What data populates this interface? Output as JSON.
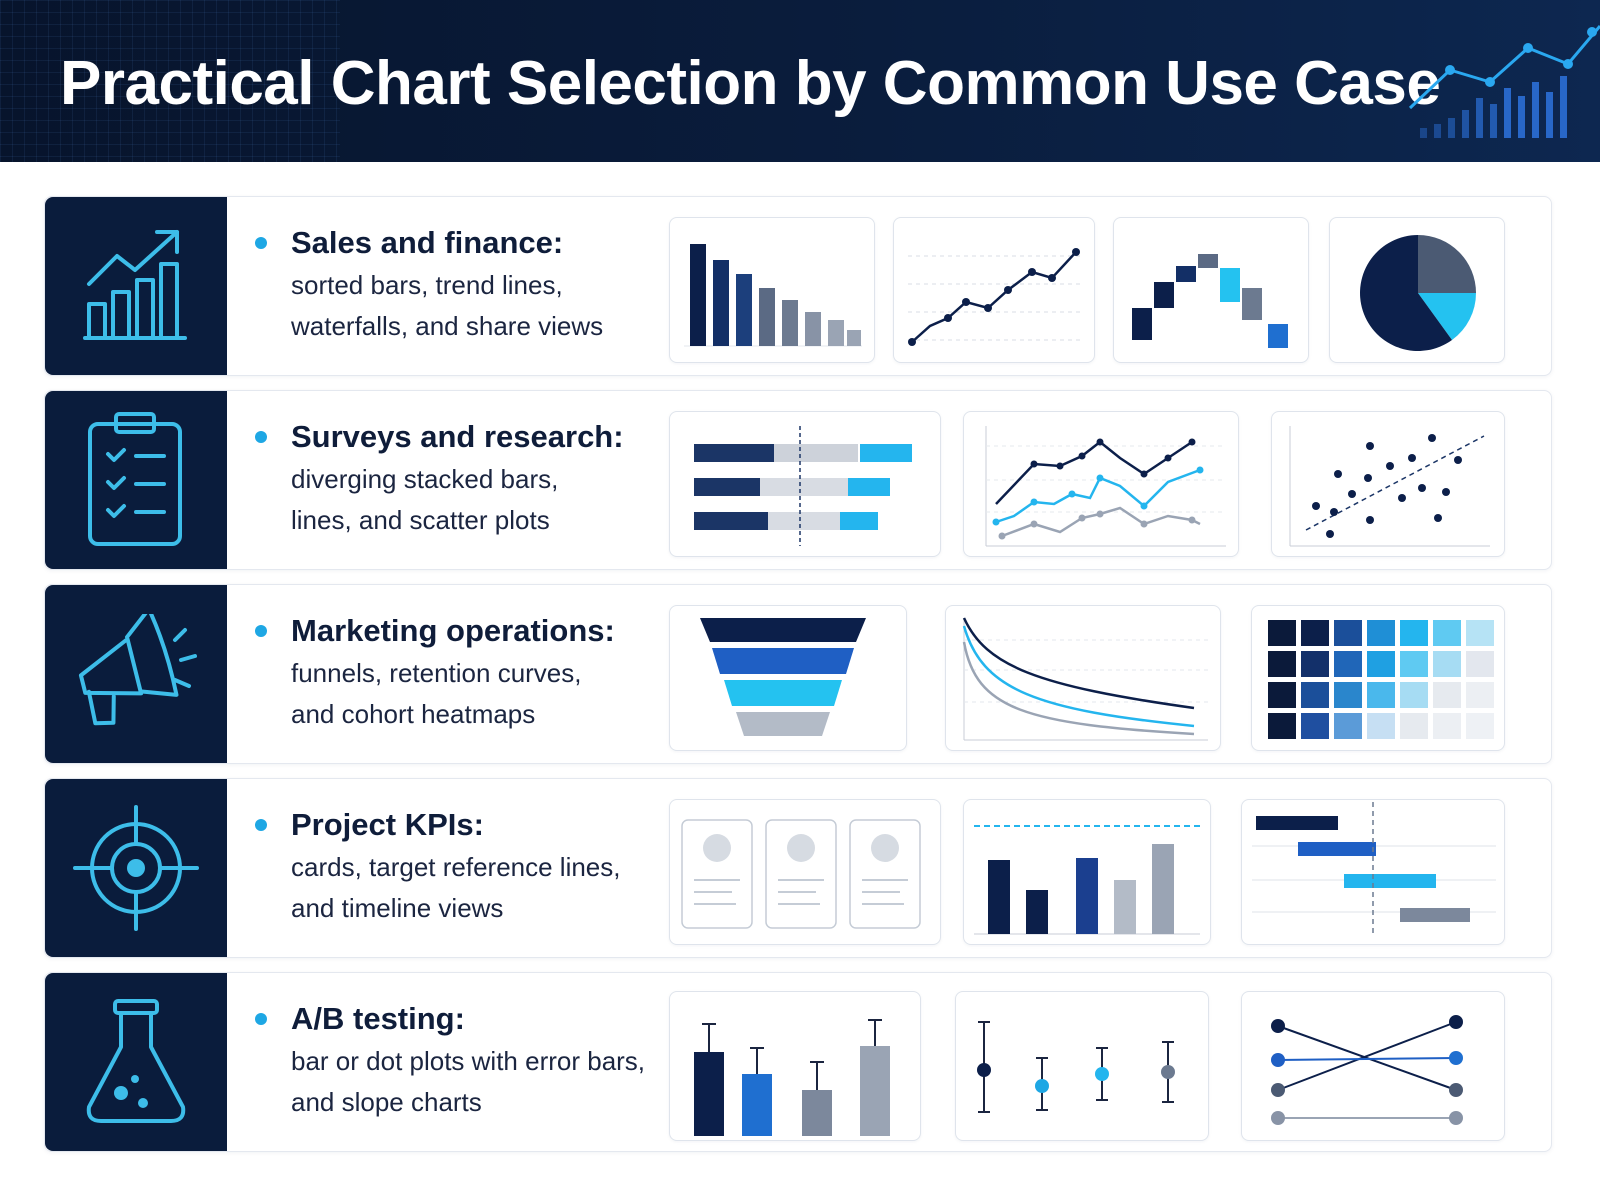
{
  "title": "Practical Chart Selection by Common Use Case",
  "colors": {
    "navy": "#0c1f4a",
    "blue": "#1f5fc4",
    "cyan": "#24c2f0",
    "slate": "#6c7a90",
    "gray": "#b3bbc7",
    "header_bg": "#0a1d3d",
    "icon_panel": "#0a1c3c",
    "icon_stroke": "#3dbde9",
    "bullet": "#1ea7e4"
  },
  "rows": [
    {
      "icon": "growth-chart-icon",
      "title": "Sales and finance:",
      "desc_lines": [
        "sorted bars, trend lines,",
        "waterfalls, and share views"
      ],
      "thumbnails": [
        "sorted-bar-chart",
        "trend-line-chart",
        "waterfall-chart",
        "pie-chart"
      ]
    },
    {
      "icon": "clipboard-checklist-icon",
      "title": "Surveys and research:",
      "desc_lines": [
        "diverging stacked bars,",
        "lines, and scatter plots"
      ],
      "thumbnails": [
        "diverging-stacked-bar-chart",
        "multi-line-chart",
        "scatter-plot"
      ]
    },
    {
      "icon": "megaphone-icon",
      "title": "Marketing operations:",
      "desc_lines": [
        "funnels, retention curves,",
        "and cohort heatmaps"
      ],
      "thumbnails": [
        "funnel-chart",
        "retention-curve-chart",
        "cohort-heatmap"
      ]
    },
    {
      "icon": "target-icon",
      "title": "Project KPIs:",
      "desc_lines": [
        "cards, target reference lines,",
        "and timeline views"
      ],
      "thumbnails": [
        "kpi-cards",
        "target-reference-bar-chart",
        "timeline-chart"
      ]
    },
    {
      "icon": "flask-icon",
      "title": "A/B testing:",
      "desc_lines": [
        "bar or dot plots with error bars,",
        "and slope charts"
      ],
      "thumbnails": [
        "error-bar-chart",
        "dot-plot-with-error-bars",
        "slope-chart"
      ]
    }
  ]
}
